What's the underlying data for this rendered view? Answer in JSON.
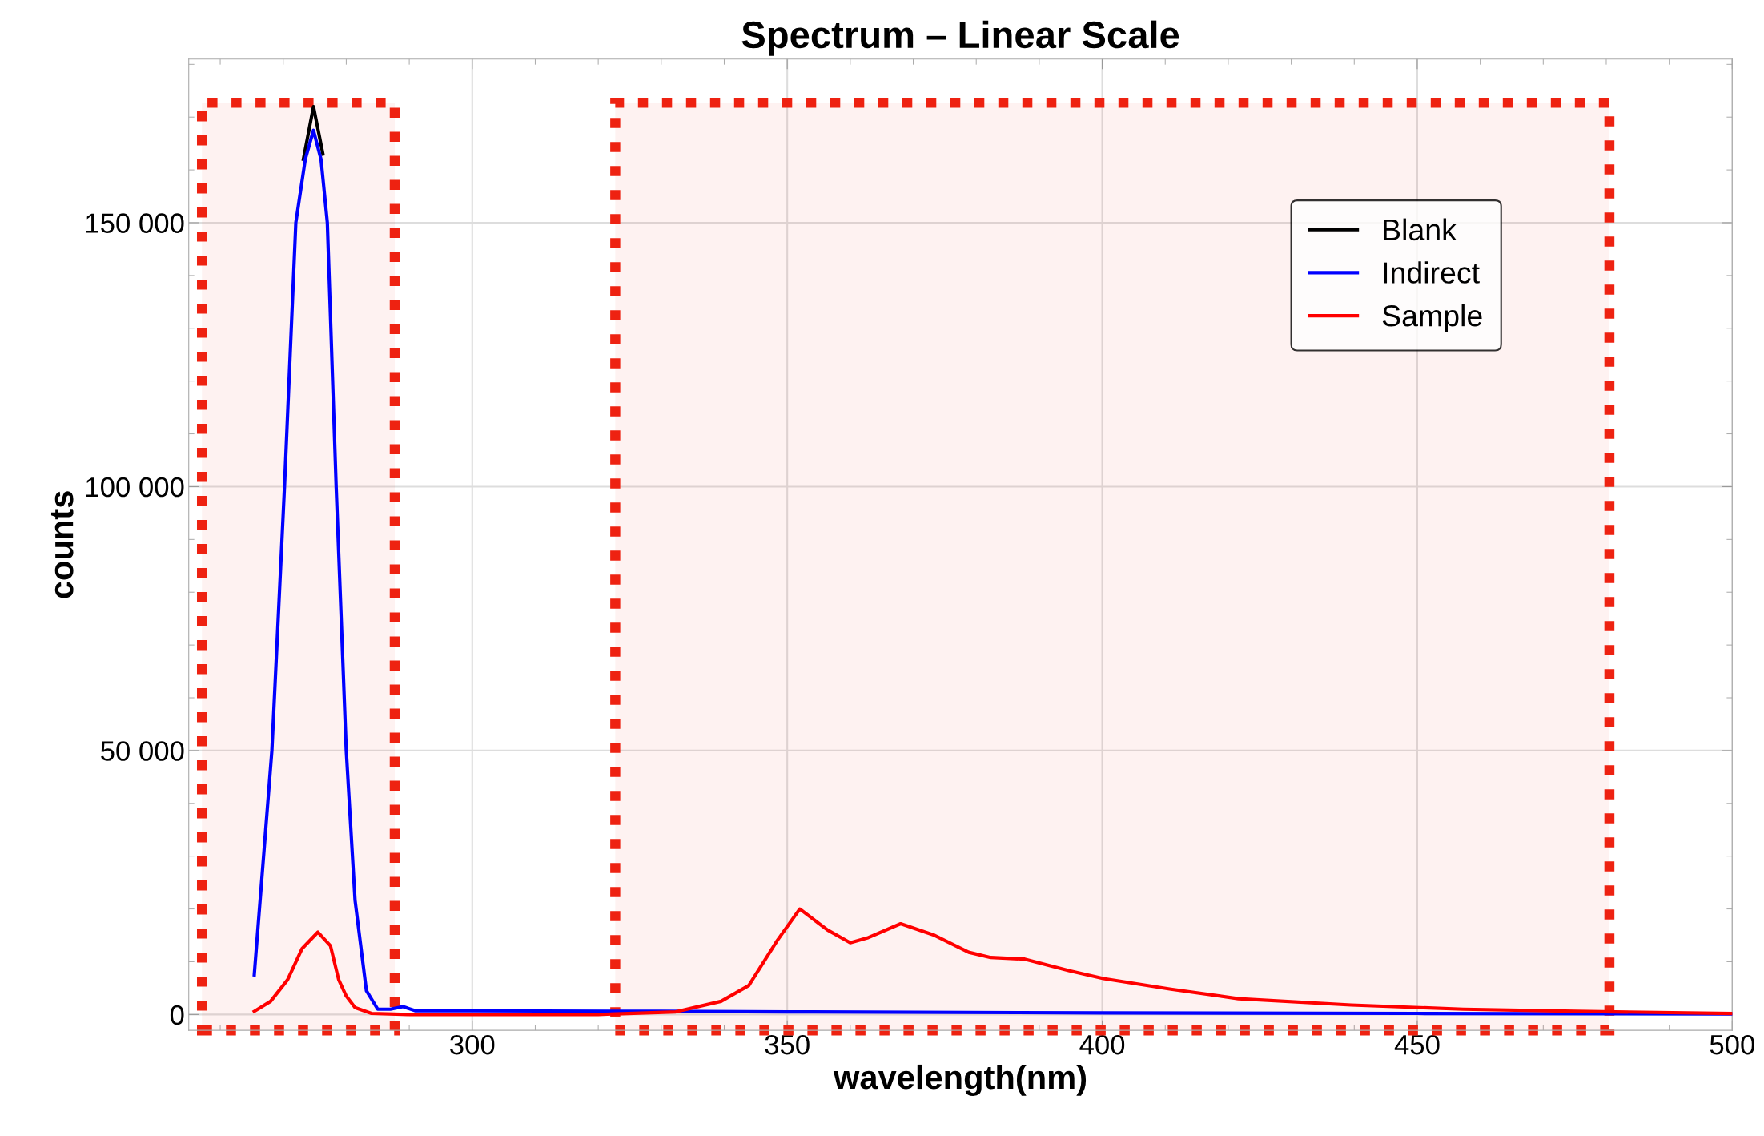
{
  "chart_data": {
    "type": "line",
    "title": "Spectrum – Linear Scale",
    "xlabel": "wavelength(nm)",
    "ylabel": "counts",
    "xlim": [
      255,
      500
    ],
    "ylim": [
      -3000,
      181000
    ],
    "xticks": [
      300,
      350,
      400,
      450,
      500
    ],
    "yticks": [
      0,
      {
        "value": 50000,
        "label": "50 000"
      },
      {
        "value": 100000,
        "label": "100 000"
      },
      {
        "value": 150000,
        "label": "150 000"
      }
    ],
    "grid": true,
    "legend": "top right",
    "line_style": "solid",
    "marker": "none",
    "series": [
      {
        "name": "Blank",
        "color": "#000000",
        "x": [
          273.2,
          274.8,
          276.3
        ],
        "values": [
          162000,
          172000,
          163000
        ]
      },
      {
        "name": "Indirect",
        "color": "#0000ff",
        "x": [
          265.4,
          268.2,
          270.2,
          272,
          273.5,
          274.8,
          276,
          277,
          278.4,
          280,
          281.4,
          283.2,
          285,
          287,
          289,
          291,
          300,
          330,
          350,
          400,
          450,
          500
        ],
        "values": [
          7500,
          50000,
          100000,
          150000,
          162000,
          167500,
          162000,
          150000,
          100000,
          50000,
          21600,
          4500,
          1000,
          1000,
          1500,
          700,
          700,
          600,
          500,
          300,
          200,
          100
        ]
      },
      {
        "name": "Sample",
        "color": "#ff0000",
        "x": [
          265.4,
          268,
          270.7,
          273,
          275.5,
          277.5,
          278.8,
          280,
          281.4,
          284,
          290,
          300,
          320,
          332.3,
          339.5,
          343.9,
          348.4,
          352,
          356.4,
          360,
          362.7,
          368,
          373.4,
          378.8,
          382.3,
          387.7,
          394.8,
          400.2,
          410.9,
          421.6,
          439.5,
          457.3,
          475.2,
          500
        ],
        "values": [
          600,
          2500,
          6600,
          12500,
          15600,
          13000,
          6600,
          3500,
          1300,
          200,
          0,
          0,
          0,
          500,
          2500,
          5500,
          14000,
          20000,
          16000,
          13600,
          14500,
          17200,
          15000,
          11800,
          10800,
          10500,
          8300,
          6800,
          4800,
          3000,
          1800,
          1000,
          600,
          200
        ]
      }
    ],
    "bands": [
      {
        "axis": "x",
        "from": 257.1,
        "to": 287.7,
        "color": "#ee2211"
      },
      {
        "axis": "x",
        "from": 322.7,
        "to": 480.5,
        "color": "#ee2211"
      }
    ]
  }
}
